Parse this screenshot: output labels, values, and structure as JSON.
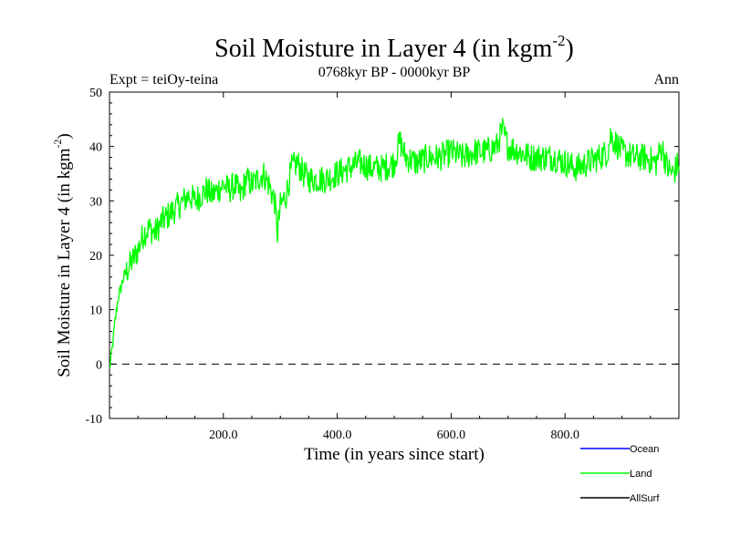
{
  "chart_data": {
    "type": "line",
    "title": "Soil Moisture in Layer 4 (in kgm",
    "title_sup": "-2",
    "title_close": ")",
    "subtitle": "0768kyr BP - 0000kyr BP",
    "left_label": "Expt = teiOy-teina",
    "right_label": "Ann",
    "xlabel": "Time (in years since start)",
    "ylabel": "Soil Moisture in Layer 4 (in kgm",
    "ylabel_sup": "-2",
    "ylabel_close": ")",
    "xlim": [
      0,
      1000
    ],
    "ylim": [
      -10,
      50
    ],
    "xticks": [
      200,
      400,
      600,
      800
    ],
    "xtick_labels": [
      "200.0",
      "400.0",
      "600.0",
      "800.0"
    ],
    "yticks": [
      -10,
      0,
      10,
      20,
      30,
      40,
      50
    ],
    "ytick_labels": [
      "-10",
      "0",
      "10",
      "20",
      "30",
      "40",
      "50"
    ],
    "zero_line": true,
    "legend_position": "bottom-right",
    "series": [
      {
        "name": "Ocean",
        "color": "#0000ff",
        "x": [],
        "values": []
      },
      {
        "name": "Land",
        "color": "#00ff00",
        "x": [
          0,
          5,
          10,
          15,
          20,
          25,
          30,
          40,
          50,
          60,
          70,
          80,
          90,
          100,
          110,
          120,
          130,
          140,
          150,
          160,
          170,
          180,
          190,
          200,
          210,
          220,
          230,
          240,
          250,
          260,
          270,
          280,
          290,
          295,
          300,
          310,
          320,
          330,
          340,
          350,
          360,
          380,
          400,
          420,
          440,
          460,
          480,
          500,
          510,
          520,
          540,
          560,
          580,
          600,
          620,
          640,
          660,
          680,
          690,
          700,
          720,
          740,
          760,
          780,
          800,
          820,
          840,
          860,
          875,
          880,
          900,
          920,
          940,
          960,
          970,
          980,
          990,
          1000
        ],
        "values": [
          -1,
          3,
          8,
          12,
          14,
          16,
          17,
          19,
          21,
          24,
          25,
          24,
          26,
          27,
          28,
          29,
          30,
          31,
          30,
          31,
          32,
          31,
          32,
          33,
          32,
          33,
          31,
          34,
          33,
          34,
          35,
          33,
          30,
          24,
          29,
          31,
          36,
          37,
          35,
          34,
          34,
          34,
          35,
          36,
          37,
          36,
          36,
          37,
          41,
          38,
          37,
          38,
          38,
          39,
          38,
          39,
          39,
          40,
          43,
          40,
          39,
          38,
          38,
          38,
          37,
          36,
          37,
          38,
          39,
          42,
          39,
          38,
          38,
          37,
          40,
          36,
          35,
          37
        ]
      },
      {
        "name": "AllSurf",
        "color": "#000000",
        "x": [],
        "values": []
      }
    ]
  }
}
